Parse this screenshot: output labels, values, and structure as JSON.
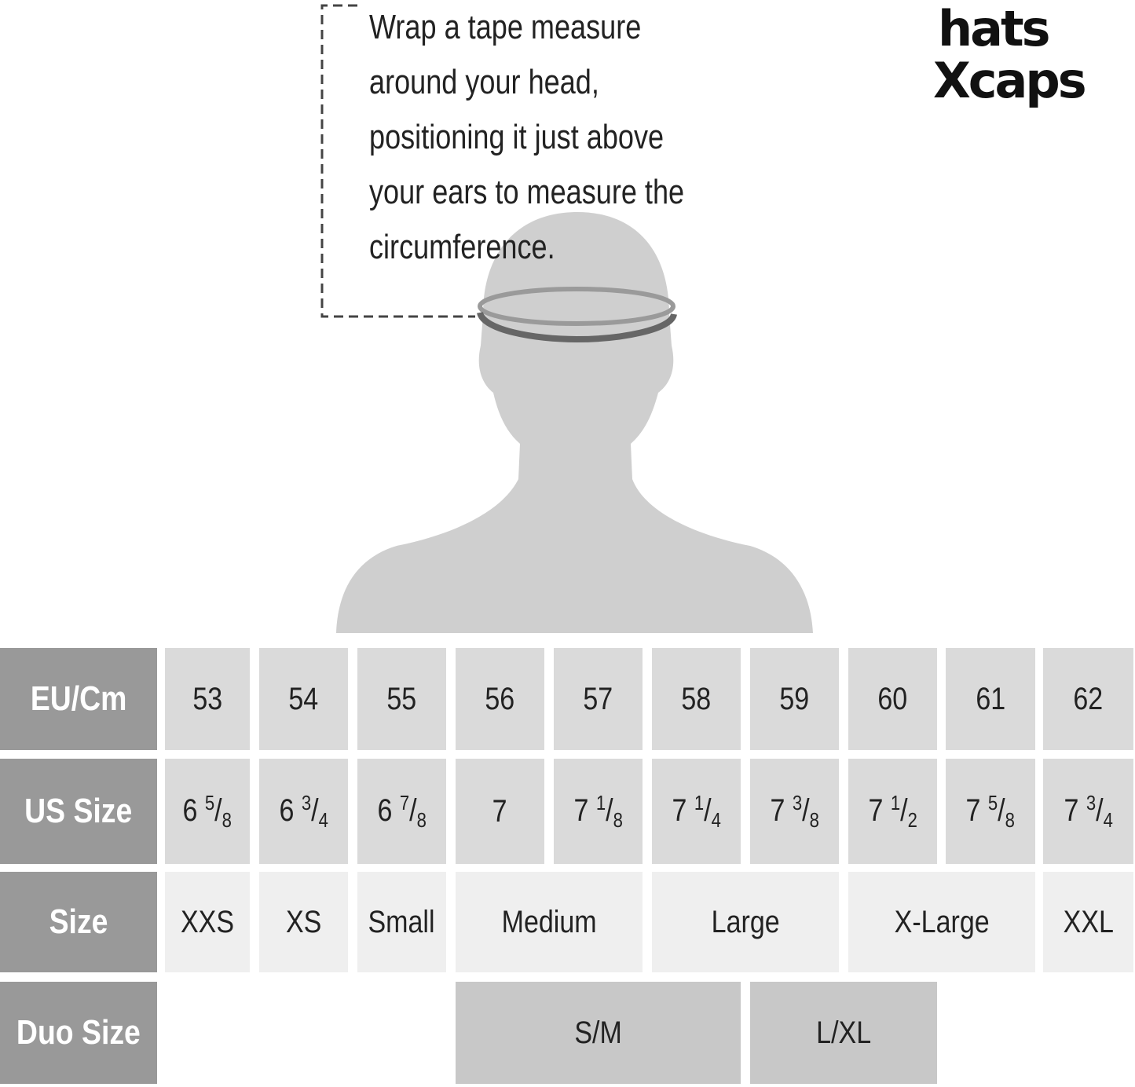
{
  "instruction": "Wrap a tape measure around your head, positioning it just above your ears to measure the circumference.",
  "logo": {
    "line1": "hats",
    "line2": "Xcaps"
  },
  "colors": {
    "header": "#999999",
    "eu_us_cells": "#dadada",
    "size_cells": "#efefef",
    "duo_cells": "#c8c8c8",
    "silhouette": "#cfcfcf",
    "tape": "#666666"
  },
  "table": {
    "row_headers": [
      "EU/Cm",
      "US Size",
      "Size",
      "Duo Size"
    ],
    "eu_cm": [
      "53",
      "54",
      "55",
      "56",
      "57",
      "58",
      "59",
      "60",
      "61",
      "62"
    ],
    "us_size": [
      {
        "whole": "6",
        "num": "5",
        "den": "8"
      },
      {
        "whole": "6",
        "num": "3",
        "den": "4"
      },
      {
        "whole": "6",
        "num": "7",
        "den": "8"
      },
      {
        "whole": "7",
        "num": "",
        "den": ""
      },
      {
        "whole": "7",
        "num": "1",
        "den": "8"
      },
      {
        "whole": "7",
        "num": "1",
        "den": "4"
      },
      {
        "whole": "7",
        "num": "3",
        "den": "8"
      },
      {
        "whole": "7",
        "num": "1",
        "den": "2"
      },
      {
        "whole": "7",
        "num": "5",
        "den": "8"
      },
      {
        "whole": "7",
        "num": "3",
        "den": "4"
      }
    ],
    "size": [
      {
        "label": "XXS",
        "span": 1
      },
      {
        "label": "XS",
        "span": 1
      },
      {
        "label": "Small",
        "span": 1
      },
      {
        "label": "Medium",
        "span": 2
      },
      {
        "label": "Large",
        "span": 2
      },
      {
        "label": "X-Large",
        "span": 2
      },
      {
        "label": "XXL",
        "span": 1
      }
    ],
    "duo_size": [
      {
        "label": "",
        "span": 3
      },
      {
        "label": "S/M",
        "span": 3
      },
      {
        "label": "L/XL",
        "span": 2
      },
      {
        "label": "",
        "span": 2
      }
    ]
  }
}
